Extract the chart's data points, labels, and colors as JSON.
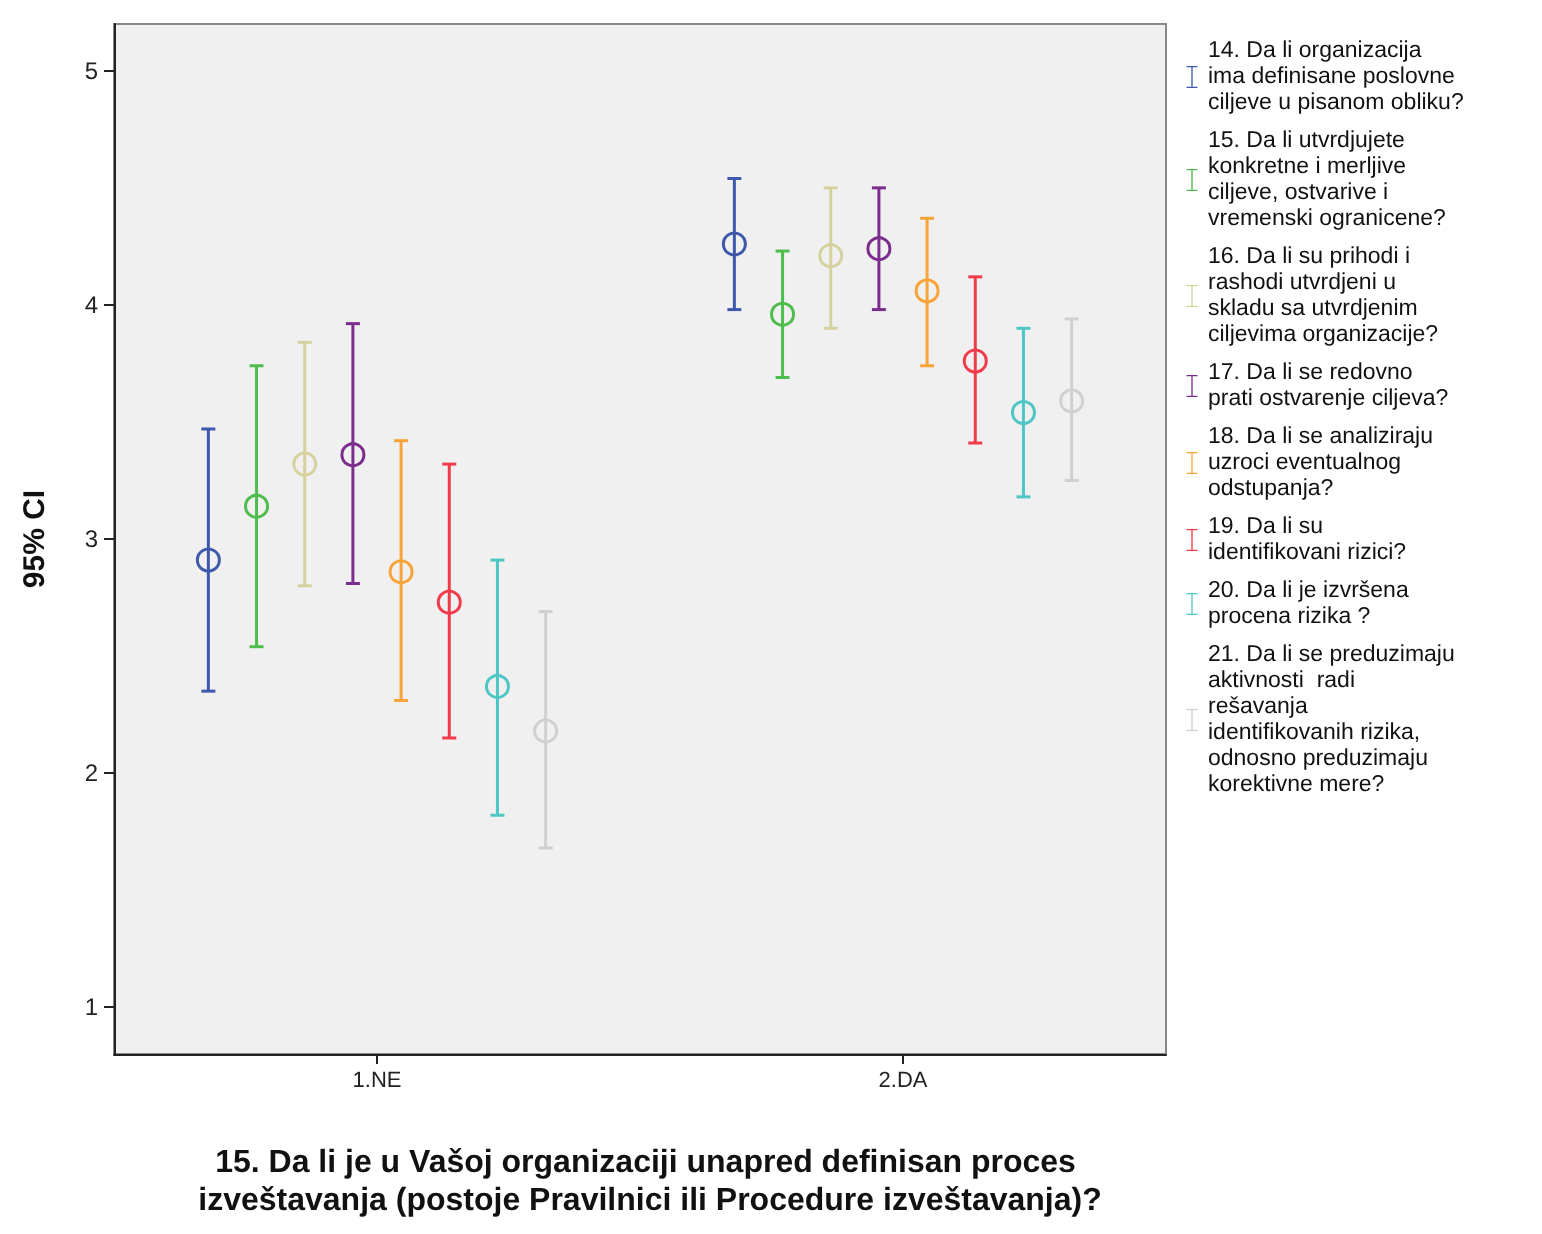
{
  "chart_data": {
    "type": "scatter",
    "xlabel": "15. Da li je u Vašoj organizaciji unapred definisan proces izveštavanja (postoje Pravilnici ili Procedure izveštavanja)?",
    "ylabel": "95% CI",
    "categories": [
      "1.NE",
      "2.DA"
    ],
    "ylim": [
      0.8,
      5.2
    ],
    "yticks": [
      1,
      2,
      3,
      4,
      5
    ],
    "grid": false,
    "legend": "right",
    "marker": "circle",
    "series": [
      {
        "name": "14. Da li organizacija ima definisane poslovne ciljeve u pisanom obliku?",
        "color": "#3e58ac",
        "values": [
          2.91,
          4.26
        ],
        "errors": [
          [
            2.35,
            3.47
          ],
          [
            3.98,
            4.54
          ]
        ]
      },
      {
        "name": "15. Da li utvrdjujete konkretne i merljive ciljeve, ostvarive i vremenski ogranicene?",
        "color": "#4dbd4d",
        "values": [
          3.14,
          3.96
        ],
        "errors": [
          [
            2.54,
            3.74
          ],
          [
            3.69,
            4.23
          ]
        ]
      },
      {
        "name": "16. Da li su prihodi i rashodi utvrdjeni u skladu sa utvrdjenim ciljevima organizacije?",
        "color": "#d6d2a0",
        "values": [
          3.32,
          4.21
        ],
        "errors": [
          [
            2.8,
            3.84
          ],
          [
            3.9,
            4.5
          ]
        ]
      },
      {
        "name": "17. Da li se redovno prati ostvarenje ciljeva?",
        "color": "#7b2d8e",
        "values": [
          3.36,
          4.24
        ],
        "errors": [
          [
            2.81,
            3.92
          ],
          [
            3.98,
            4.5
          ]
        ]
      },
      {
        "name": "18. Da li se analiziraju uzroci eventualnog odstupanja?",
        "color": "#f9a43a",
        "values": [
          2.86,
          4.06
        ],
        "errors": [
          [
            2.31,
            3.42
          ],
          [
            3.74,
            4.37
          ]
        ]
      },
      {
        "name": "19. Da li su identifikovani rizici?",
        "color": "#ef3b4a",
        "values": [
          2.73,
          3.76
        ],
        "errors": [
          [
            2.15,
            3.32
          ],
          [
            3.41,
            4.12
          ]
        ]
      },
      {
        "name": "20. Da li je izvršena procena rizika ?",
        "color": "#4fc6c6",
        "values": [
          2.37,
          3.54
        ],
        "errors": [
          [
            1.82,
            2.91
          ],
          [
            3.18,
            3.9
          ]
        ]
      },
      {
        "name": "21. Da li se preduzimaju aktivnosti  radi rešavanja identifikovanih rizika, odnosno preduzimaju korektivne mere?",
        "color": "#d0d0d0",
        "values": [
          2.18,
          3.59
        ],
        "errors": [
          [
            1.68,
            2.69
          ],
          [
            3.25,
            3.94
          ]
        ]
      }
    ]
  }
}
